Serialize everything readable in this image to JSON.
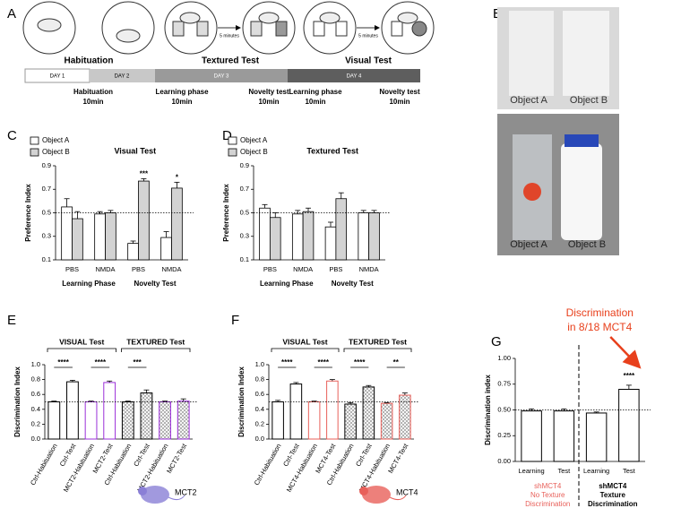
{
  "panels": [
    "A",
    "B",
    "C",
    "D",
    "E",
    "F",
    "G"
  ],
  "panel_a": {
    "stages": [
      "Habituation",
      "Textured Test",
      "Visual Test"
    ],
    "interval_labels": [
      "5 minutes",
      "5 minutes"
    ],
    "days": [
      "DAY 1",
      "DAY 2",
      "DAY 3",
      "DAY 4"
    ],
    "phases": [
      {
        "name": "Habituation",
        "duration": "10min"
      },
      {
        "name": "Learning phase",
        "duration": "10min"
      },
      {
        "name": "Novelty test",
        "duration": "10min"
      },
      {
        "name": "Learning phase",
        "duration": "10min"
      },
      {
        "name": "Novelty test",
        "duration": "10min"
      }
    ]
  },
  "panel_b": {
    "photo_labels": [
      [
        "Object A",
        "Object B"
      ],
      [
        "Object A",
        "Object B"
      ]
    ]
  },
  "chart_data": [
    {
      "type": "bar",
      "title": "Visual Test",
      "ylabel": "Preference Index",
      "categories": [
        "PBS",
        "NMDA",
        "PBS",
        "NMDA"
      ],
      "groups": [
        "Learning Phase",
        "Novelty Test"
      ],
      "series": [
        {
          "name": "Object A",
          "color": "#ffffff",
          "values": [
            0.55,
            0.49,
            0.24,
            0.29
          ],
          "errors": [
            0.07,
            0.02,
            0.02,
            0.05
          ]
        },
        {
          "name": "Object B",
          "color": "#d3d3d3",
          "values": [
            0.45,
            0.5,
            0.77,
            0.71
          ],
          "errors": [
            0.06,
            0.02,
            0.02,
            0.05
          ]
        }
      ],
      "significance": [
        null,
        null,
        "***",
        "*"
      ],
      "ylim": [
        0.1,
        0.9
      ],
      "yticks": [
        0.1,
        0.3,
        0.5,
        0.7,
        0.9
      ],
      "hline": 0.5
    },
    {
      "type": "bar",
      "title": "Textured Test",
      "ylabel": "Preference Index",
      "categories": [
        "PBS",
        "NMDA",
        "PBS",
        "NMDA"
      ],
      "groups": [
        "Learning Phase",
        "Novelty Test"
      ],
      "series": [
        {
          "name": "Object A",
          "color": "#ffffff",
          "values": [
            0.54,
            0.49,
            0.38,
            0.5
          ],
          "errors": [
            0.03,
            0.03,
            0.04,
            0.02
          ]
        },
        {
          "name": "Object B",
          "color": "#d3d3d3",
          "values": [
            0.46,
            0.51,
            0.62,
            0.5
          ],
          "errors": [
            0.04,
            0.03,
            0.05,
            0.02
          ]
        }
      ],
      "ylim": [
        0.1,
        0.9
      ],
      "yticks": [
        0.1,
        0.3,
        0.5,
        0.7,
        0.9
      ],
      "hline": 0.5
    },
    {
      "type": "bar",
      "ylabel": "Discrimination Index",
      "categories": [
        "Ctrl-Habituation",
        "Ctrl-Test",
        "MCT2-Habituation",
        "MCT2-Test",
        "Ctrl-Habituation",
        "Ctrl-Test",
        "MCT2-Habituation",
        "MCT2-Test"
      ],
      "values": [
        0.5,
        0.77,
        0.5,
        0.76,
        0.5,
        0.62,
        0.5,
        0.51
      ],
      "errors": [
        0.01,
        0.02,
        0.01,
        0.02,
        0.01,
        0.04,
        0.01,
        0.03
      ],
      "colors": [
        "#000000",
        "#000000",
        "#9b30d9",
        "#9b30d9",
        "#000000",
        "#000000",
        "#9b30d9",
        "#9b30d9"
      ],
      "hatch": [
        false,
        false,
        false,
        false,
        true,
        true,
        true,
        true
      ],
      "brackets": [
        "VISUAL Test",
        "TEXTURED Test"
      ],
      "pair_significance": [
        "****",
        "****",
        "***",
        null
      ],
      "tag": "MCT2",
      "tag_color": "#8a7fd6",
      "ylim": [
        0,
        1
      ],
      "yticks": [
        {
          "value": 0,
          "label": "0.0"
        },
        0.2,
        0.4,
        0.6,
        0.8,
        {
          "value": 1,
          "label": "1.0"
        }
      ],
      "hline": 0.5
    },
    {
      "type": "bar",
      "ylabel": "Discrimination Index",
      "categories": [
        "Ctrl-Habituation",
        "Ctrl-Test",
        "MCT4-Habituation",
        "MCT4-Test",
        "Ctrl-Habituation",
        "Ctrl-Test",
        "MCT4-Habituation",
        "MCT4-Test"
      ],
      "values": [
        0.5,
        0.74,
        0.5,
        0.78,
        0.47,
        0.7,
        0.48,
        0.59
      ],
      "errors": [
        0.02,
        0.02,
        0.01,
        0.02,
        0.02,
        0.02,
        0.01,
        0.03
      ],
      "colors": [
        "#000000",
        "#000000",
        "#e8605a",
        "#e8605a",
        "#000000",
        "#000000",
        "#e8605a",
        "#e8605a"
      ],
      "hatch": [
        false,
        false,
        false,
        false,
        true,
        true,
        true,
        true
      ],
      "brackets": [
        "VISUAL Test",
        "TEXTURED Test"
      ],
      "pair_significance": [
        "****",
        "****",
        "****",
        "**"
      ],
      "tag": "MCT4",
      "tag_color": "#e8605a",
      "ylim": [
        0,
        1
      ],
      "yticks": [
        {
          "value": 0,
          "label": "0.0"
        },
        0.2,
        0.4,
        0.6,
        0.8,
        {
          "value": 1,
          "label": "1.0"
        }
      ],
      "hline": 0.5
    },
    {
      "type": "bar",
      "ylabel": "Discrimination index",
      "categories": [
        "Learning",
        "Test",
        "Learning",
        "Test"
      ],
      "values": [
        0.49,
        0.49,
        0.47,
        0.7
      ],
      "errors": [
        0.02,
        0.02,
        0.01,
        0.04
      ],
      "colors": [
        "#000000",
        "#000000",
        "#000000",
        "#000000"
      ],
      "groups": [
        [
          "shMCT4",
          "No Texture",
          "Discrimination"
        ],
        [
          "shMCT4",
          "Texture",
          "Discrimination"
        ]
      ],
      "group_colors": [
        "#e8605a",
        "#000000"
      ],
      "significance": [
        null,
        null,
        null,
        "****"
      ],
      "annotation": [
        "Discrimination",
        "in 8/18 MCT4"
      ],
      "annotation_color": "#e8401c",
      "ylim": [
        0,
        1
      ],
      "yticks": [
        {
          "value": 0,
          "label": "0.00"
        },
        {
          "value": 0.25,
          "label": "0.25"
        },
        {
          "value": 0.5,
          "label": "0.50"
        },
        {
          "value": 0.75,
          "label": "0.75"
        },
        {
          "value": 1,
          "label": "1.00"
        }
      ],
      "hline": 0.5
    }
  ]
}
